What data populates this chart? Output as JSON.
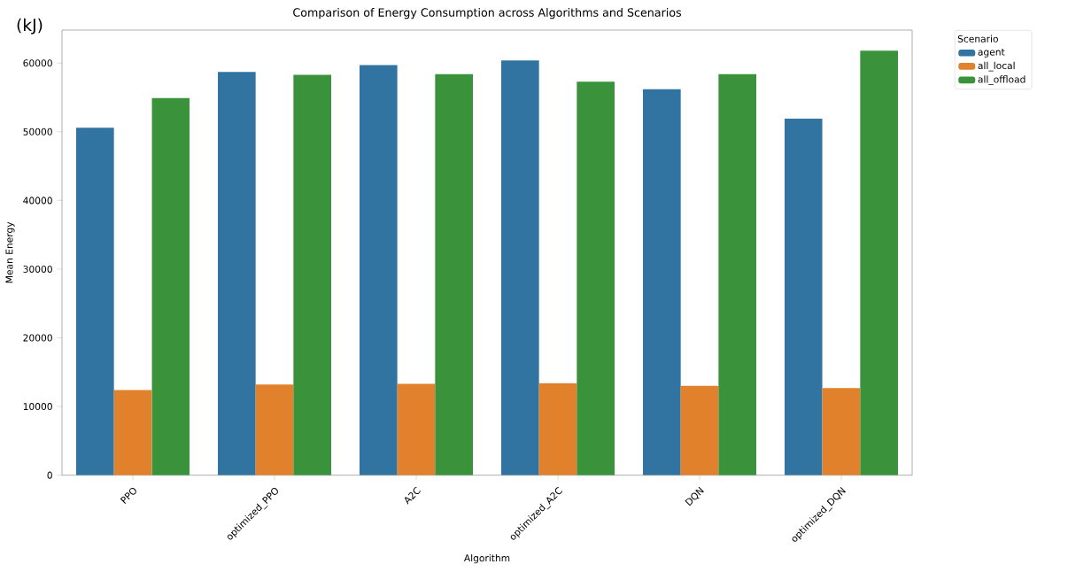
{
  "chart_data": {
    "type": "bar",
    "title": "Comparison of Energy Consumption across Algorithms and Scenarios",
    "xlabel": "Algorithm",
    "ylabel": "Mean Energy",
    "legend_title": "Scenario",
    "annotations": [
      "(kJ)"
    ],
    "categories": [
      "PPO",
      "optimized_PPO",
      "A2C",
      "optimized_A2C",
      "DQN",
      "optimized_DQN"
    ],
    "series": [
      {
        "name": "agent",
        "color": "#3274a1",
        "values": [
          50600,
          58700,
          59700,
          60400,
          56200,
          51900
        ]
      },
      {
        "name": "all_local",
        "color": "#e1812c",
        "values": [
          12400,
          13200,
          13300,
          13400,
          13000,
          12700
        ]
      },
      {
        "name": "all_offload",
        "color": "#3a923a",
        "values": [
          54900,
          58300,
          58400,
          57300,
          58400,
          61800
        ]
      }
    ],
    "ylim": [
      0,
      64800
    ],
    "yticks": [
      0,
      10000,
      20000,
      30000,
      40000,
      50000,
      60000
    ],
    "grid": false,
    "legend": "top right"
  }
}
